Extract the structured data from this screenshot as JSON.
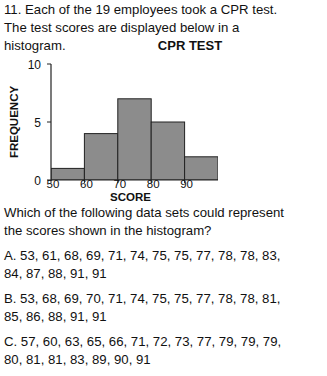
{
  "question": {
    "lines": [
      "11. Each of the 19 employees took a CPR test.",
      "The test scores are displayed below in a",
      "histogram."
    ]
  },
  "chart_data": {
    "type": "histogram",
    "title": "CPR TEST",
    "x_label": "SCORE",
    "y_label": "FREQUENCY",
    "bins": [
      50,
      60,
      70,
      80,
      90,
      100
    ],
    "values": [
      1,
      4,
      7,
      5,
      2
    ],
    "color": "#8c8c8c",
    "xlim": [
      50,
      100
    ],
    "xticks": [
      50,
      60,
      70,
      80,
      90
    ],
    "ylim": [
      0,
      10
    ],
    "yticks": [
      0,
      5,
      10
    ],
    "grid": false
  },
  "prompt": {
    "lines": [
      "Which of the following data sets could represent",
      "the scores shown in the histogram?"
    ]
  },
  "options": [
    {
      "lines": [
        "A. 53, 61, 68, 69, 71, 74, 75, 75, 77, 78, 78, 83,",
        "84, 87, 88, 91, 91"
      ]
    },
    {
      "lines": [
        "B. 53, 68, 69, 70, 71, 74, 75, 75, 77, 78, 78, 81,",
        "85, 86, 88, 91, 91"
      ]
    },
    {
      "lines": [
        "C. 57, 60, 63, 65, 66, 71, 72, 73, 77, 79, 79, 79,",
        "80, 81, 81, 83, 89, 90, 91"
      ]
    }
  ]
}
